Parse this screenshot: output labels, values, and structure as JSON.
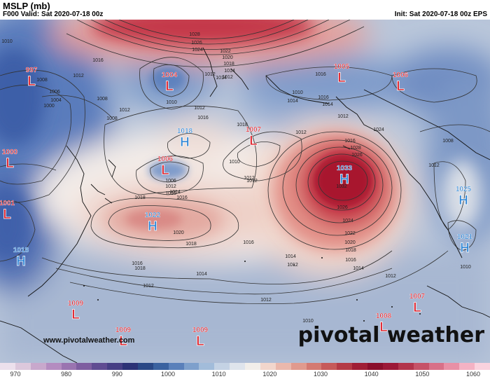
{
  "header": {
    "title": "MSLP (mb)",
    "valid": "F000 Valid: Sat 2020-07-18 00z",
    "init": "Init: Sat 2020-07-18 00z EPS"
  },
  "branding": {
    "wordmark": "pivotal weather",
    "site": "www.pivotalweather.com"
  },
  "pressure_centers": [
    {
      "type": "L",
      "value": "997"
    },
    {
      "type": "L",
      "value": "1004"
    },
    {
      "type": "L",
      "value": "1005"
    },
    {
      "type": "L",
      "value": "1006"
    },
    {
      "type": "L",
      "value": "1007"
    },
    {
      "type": "H",
      "value": "1018"
    },
    {
      "type": "L",
      "value": "1000"
    },
    {
      "type": "L",
      "value": "1006"
    },
    {
      "type": "H",
      "value": "1033"
    },
    {
      "type": "L",
      "value": "1001"
    },
    {
      "type": "H",
      "value": "1022"
    },
    {
      "type": "H",
      "value": "1025"
    },
    {
      "type": "H",
      "value": "1018"
    },
    {
      "type": "H",
      "value": "1021"
    },
    {
      "type": "L",
      "value": "1009"
    },
    {
      "type": "L",
      "value": "1007"
    },
    {
      "type": "L",
      "value": "1008"
    },
    {
      "type": "L",
      "value": "1009"
    },
    {
      "type": "L",
      "value": "1009"
    }
  ],
  "isobar_labels": [
    "1010",
    "1008",
    "1012",
    "1016",
    "1028",
    "1026",
    "1024",
    "1022",
    "1020",
    "1018",
    "1014",
    "1012",
    "1014",
    "1010",
    "1012",
    "1006",
    "1004",
    "1000",
    "1008",
    "1012",
    "1008",
    "1016",
    "1018",
    "1014",
    "1012",
    "1010",
    "1016",
    "1012",
    "1010",
    "1012",
    "1016",
    "1014",
    "1012",
    "1016",
    "1028",
    "1026",
    "1024",
    "1012",
    "1006",
    "1012",
    "1016",
    "1018",
    "1014",
    "1016",
    "1020",
    "1018",
    "1016",
    "1014",
    "1012",
    "1032",
    "1026",
    "1024",
    "1022",
    "1020",
    "1018",
    "1016",
    "1014",
    "1012",
    "1010",
    "1012",
    "1016",
    "1018",
    "1014",
    "1012",
    "1010",
    "1012",
    "1008"
  ],
  "colors": {
    "low_label": "#e0202a",
    "high_label": "#2f86d6",
    "high_fill": "#b8142e",
    "low_fill": "#3a5fa8",
    "isobar": "#333333"
  },
  "colorbar": {
    "ticks": [
      "970",
      "980",
      "990",
      "1000",
      "1010",
      "1020",
      "1030",
      "1040",
      "1050",
      "1060"
    ],
    "colors": [
      "#ece0ec",
      "#dcc8dc",
      "#c8a8cc",
      "#b48cc0",
      "#9a74b0",
      "#7e5ea0",
      "#604c92",
      "#463e84",
      "#2c3276",
      "#2a4886",
      "#3a62a0",
      "#5a80ba",
      "#7ea0cc",
      "#a2bcda",
      "#c4d2e4",
      "#dfe4ec",
      "#f2eeea",
      "#f2d6cc",
      "#eab8ac",
      "#e09a8e",
      "#d47a72",
      "#c65a5a",
      "#b43a46",
      "#a01e36",
      "#8a0e2c",
      "#9c1838",
      "#b2344c",
      "#c65268",
      "#d87088",
      "#e890a6",
      "#f4b2c4",
      "#fad2de"
    ]
  }
}
